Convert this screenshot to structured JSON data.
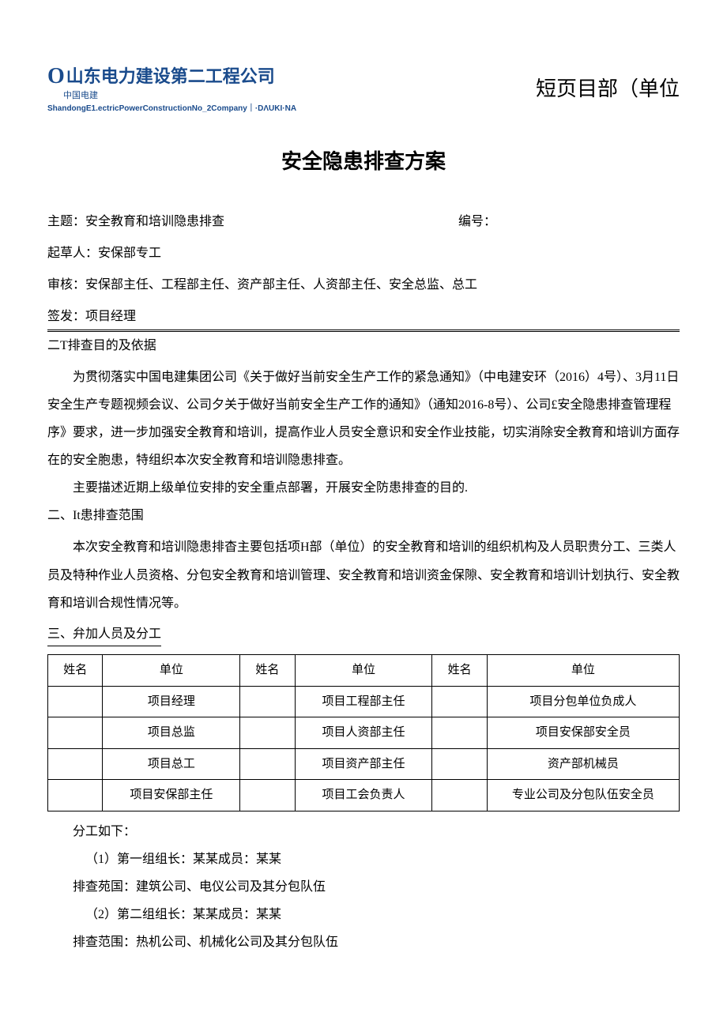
{
  "header": {
    "company_name": "山东电力建设第二工程公司",
    "company_sub": "中国电建",
    "company_en": "ShandongE1.ectricPowerConstructionNo_2Company｜·DΛUKI·NA",
    "right_text": "短页目部（单位"
  },
  "doc_title": "安全隐患排查方案",
  "meta": {
    "topic_label": "主题：",
    "topic_value": "安全教育和培训隐患排查",
    "code_label": "编号：",
    "drafter_label": "起草人：",
    "drafter_value": "安保部专工",
    "reviewer_label": "审核：",
    "reviewer_value": "安保部主任、工程部主任、资产部主任、人资部主任、安全总监、总工",
    "issuer_label": "签发：",
    "issuer_value": "项目经理"
  },
  "sections": {
    "s1_heading": "二T排查目的及依据",
    "s1_p1": "为贯彻落实中国电建集团公司《关于做好当前安全生产工作的紧急通知》（中电建安环（2016）4号）、3月11日安全生产专题视频会议、公司夕关于做好当前安全生产工作的通知》（通知2016-8号）、公司£安全隐患排查管理程序》要求，进一步加强安全教育和培训，提高作业人员安全意识和安全作业技能，切实消除安全教育和培训方面存在的安全胞患，特组织本次安全教育和培训隐患排查。",
    "s1_p2": "主要描述近期上级单位安排的安全重点部署，开展安全防患排查的目的.",
    "s2_heading": "二、It患排查范围",
    "s2_p1": "本次安全教育和培训隐患排杳主要包括项H部（单位）的安全教育和培训的组织机构及人员职贵分工、三类人员及特种作业人员资格、分包安全教育和培训管理、安全教育和培训资金保隙、安全教育和培训计划执行、安全教育和培训合规性情况等。",
    "s3_heading": "三、弁加人员及分工",
    "s3_after_table": "分工如下：",
    "s3_g1_leader": "（1）第一组组长：某某成员：某某",
    "s3_g1_scope": "排查苑国：建筑公司、电仪公司及其分包队伍",
    "s3_g2_leader": "（2）第二组组长：某某成员：某某",
    "s3_g2_scope": "排查范围：热机公司、机械化公司及其分包队伍"
  },
  "table": {
    "headers": {
      "name": "姓名",
      "unit": "单位"
    },
    "rows": [
      {
        "u1": "项目经理",
        "u2": "项目工程部主任",
        "u3": "项目分包单位负成人"
      },
      {
        "u1": "项目总监",
        "u2": "项目人资部主任",
        "u3": "项目安保部安全员"
      },
      {
        "u1": "项目总工",
        "u2": "项目资产部主任",
        "u3": "资产部机械员"
      },
      {
        "u1": "项目安保部主任",
        "u2": "项目工会负责人",
        "u3": "专业公司及分包队伍安全员"
      }
    ]
  },
  "colors": {
    "brand": "#1a4b8c",
    "text": "#000000",
    "bg": "#ffffff"
  }
}
